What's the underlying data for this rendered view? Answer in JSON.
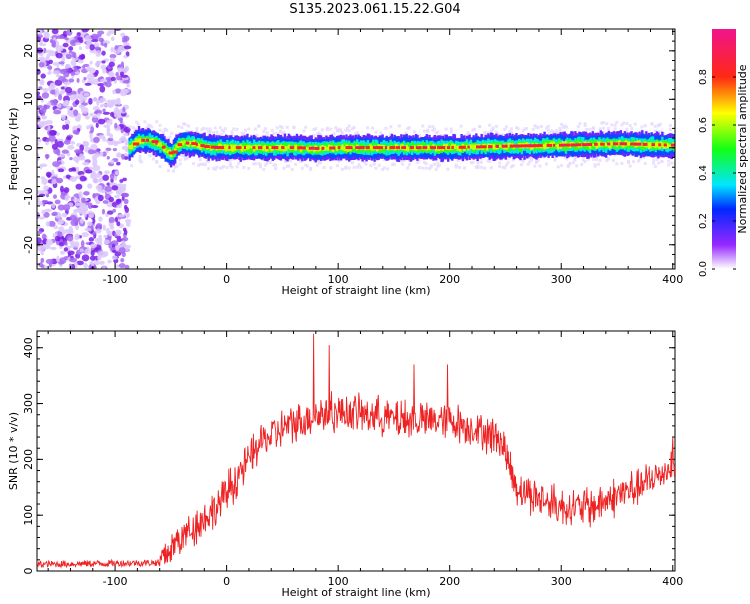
{
  "title": "S135.2023.061.15.22.G04",
  "colors": {
    "snr_line": "#ee2222",
    "axis": "#000000"
  },
  "chart_data": [
    {
      "type": "heatmap",
      "name": "spectrogram",
      "xlabel": "Height of straight line (km)",
      "ylabel": "Frequency (Hz)",
      "xlim": [
        -170,
        402
      ],
      "ylim": [
        -25,
        24.5
      ],
      "xticks": [
        -100,
        0,
        100,
        200,
        300,
        400
      ],
      "yticks": [
        -20,
        -10,
        0,
        10,
        20
      ],
      "colorbar": {
        "label": "Normalized spectral amplitude",
        "range": [
          0,
          1
        ],
        "ticks": [
          0.0,
          0.2,
          0.4,
          0.6,
          0.8
        ],
        "colormap": "rainbow (white-violet-blue-cyan-green-yellow-red-magenta)"
      },
      "noise_region_x": [
        -170,
        -88
      ],
      "signal_start_x": -88,
      "frequency_ridge": {
        "x": [
          -88,
          -80,
          -70,
          -60,
          -50,
          -45,
          -40,
          -30,
          -20,
          -10,
          0,
          20,
          40,
          60,
          80,
          100,
          150,
          200,
          250,
          300,
          350,
          400
        ],
        "y": [
          0,
          1.5,
          1.5,
          0.5,
          -1.5,
          0.5,
          1.0,
          0.8,
          0.2,
          0,
          0,
          0,
          0,
          0,
          -0.2,
          0,
          0,
          0,
          0.3,
          0.5,
          0.8,
          0.5
        ]
      }
    },
    {
      "type": "line",
      "name": "snr",
      "xlabel": "Height of straight line (km)",
      "ylabel": "SNR (10 * v/v)",
      "xlim": [
        -170,
        402
      ],
      "ylim": [
        0,
        430
      ],
      "xticks": [
        -100,
        0,
        100,
        200,
        300,
        400
      ],
      "yticks": [
        0,
        100,
        200,
        300,
        400
      ],
      "trend": {
        "x": [
          -170,
          -60,
          -50,
          -30,
          -10,
          10,
          30,
          50,
          80,
          100,
          130,
          160,
          200,
          230,
          245,
          260,
          280,
          300,
          330,
          350,
          380,
          400
        ],
        "y": [
          12,
          15,
          40,
          80,
          110,
          170,
          230,
          255,
          280,
          285,
          280,
          270,
          270,
          250,
          240,
          150,
          130,
          115,
          115,
          135,
          160,
          190
        ]
      },
      "noise_amplitude": 30,
      "peaks": [
        {
          "x": 78,
          "y": 425
        },
        {
          "x": 92,
          "y": 405
        },
        {
          "x": 198,
          "y": 370
        },
        {
          "x": 168,
          "y": 370
        },
        {
          "x": 400,
          "y": 240
        }
      ]
    }
  ]
}
